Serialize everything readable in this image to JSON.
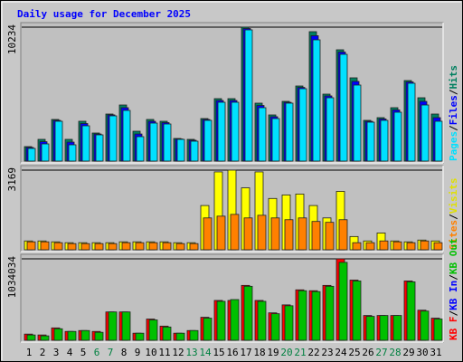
{
  "title": "Daily usage for December 2025",
  "legend_separator": "/",
  "chart_data": [
    {
      "type": "bar",
      "ylim": [
        0,
        10234
      ],
      "yticks": [
        10234
      ],
      "stack_order": "reverse",
      "series": [
        {
          "name": "Pages",
          "color": "#00e0ff",
          "values": [
            968,
            1314,
            3043,
            1245,
            2697,
            2005,
            3457,
            3872,
            1867,
            2904,
            2835,
            1660,
            1521,
            3112,
            4495,
            4495,
            10027,
            4080,
            3250,
            4426,
            5532,
            9266,
            4840,
            8159,
            5809,
            2973,
            3112,
            3734,
            5947,
            4287,
            3043
          ]
        },
        {
          "name": "Files",
          "color": "#0000ff",
          "values": [
            1040,
            1480,
            3110,
            1450,
            2870,
            2070,
            3530,
            4080,
            2070,
            3040,
            2940,
            1690,
            1590,
            3180,
            4630,
            4630,
            10130,
            4250,
            3390,
            4490,
            5630,
            9580,
            4980,
            8330,
            6090,
            3040,
            3220,
            3910,
            6050,
            4560,
            3320
          ]
        },
        {
          "name": "Hits",
          "color": "#008060",
          "values": [
            1106,
            1660,
            3181,
            1660,
            3043,
            2144,
            3596,
            4287,
            2282,
            3181,
            3043,
            1729,
            1660,
            3250,
            4771,
            4771,
            10234,
            4426,
            3527,
            4564,
            5739,
            9888,
            5117,
            8505,
            6362,
            3112,
            3319,
            4080,
            6154,
            4840,
            3596
          ]
        }
      ]
    },
    {
      "type": "bar",
      "ylim": [
        0,
        3169
      ],
      "yticks": [
        3169
      ],
      "stack_order": "reverse",
      "series": [
        {
          "name": "Sites",
          "color": "#ff8000",
          "values": [
            317,
            317,
            282,
            246,
            246,
            246,
            246,
            282,
            282,
            282,
            282,
            246,
            246,
            1268,
            1338,
            1408,
            1268,
            1373,
            1268,
            1197,
            1268,
            1127,
            1092,
            1197,
            282,
            282,
            352,
            317,
            282,
            352,
            282
          ]
        },
        {
          "name": "Visits",
          "color": "#ffff00",
          "values": [
            352,
            352,
            317,
            282,
            282,
            282,
            282,
            317,
            317,
            317,
            317,
            282,
            282,
            1761,
            3099,
            3169,
            2465,
            3099,
            2042,
            2183,
            2218,
            1761,
            1268,
            2324,
            528,
            352,
            669,
            352,
            317,
            387,
            352
          ]
        }
      ]
    },
    {
      "type": "bar",
      "ylim": [
        0,
        1034034
      ],
      "yticks": [
        1034034
      ],
      "stack_order": "forward",
      "categories": [
        "1",
        "2",
        "3",
        "4",
        "5",
        "6",
        "7",
        "8",
        "9",
        "10",
        "11",
        "12",
        "13",
        "14",
        "15",
        "16",
        "17",
        "18",
        "19",
        "20",
        "21",
        "22",
        "23",
        "24",
        "25",
        "26",
        "27",
        "28",
        "29",
        "30",
        "31"
      ],
      "category_colors": [
        "#000000",
        "#000000",
        "#000000",
        "#000000",
        "#000000",
        "#008040",
        "#008040",
        "#000000",
        "#000000",
        "#000000",
        "#000000",
        "#000000",
        "#008040",
        "#008040",
        "#000000",
        "#000000",
        "#000000",
        "#000000",
        "#000000",
        "#008040",
        "#008040",
        "#000000",
        "#000000",
        "#000000",
        "#000000",
        "#000000",
        "#008040",
        "#008040",
        "#000000",
        "#000000",
        "#000000"
      ],
      "series": [
        {
          "name": "KB F",
          "color": "#ff0000",
          "values": [
            78676,
            67437,
            157353,
            112395,
            123634,
            112395,
            359664,
            359664,
            89916,
            269748,
            179832,
            89916,
            123634,
            292227,
            505777,
            505777,
            696849,
            505777,
            348425,
            449580,
            640653,
            629414,
            696849,
            1034034,
            764286,
            314704,
            314704,
            314704,
            753047,
            382142,
            280988
          ]
        },
        {
          "name": "KB In",
          "color": "#0000ff"
        },
        {
          "name": "KB Out",
          "color": "#00c000",
          "values": [
            67437,
            56198,
            146114,
            112395,
            123634,
            101156,
            359664,
            359664,
            89916,
            258509,
            168593,
            89916,
            123634,
            280988,
            494538,
            517017,
            685610,
            494538,
            337186,
            438341,
            629414,
            618175,
            685610,
            989079,
            753047,
            303465,
            314704,
            314704,
            741808,
            370903,
            269748
          ]
        }
      ]
    }
  ]
}
